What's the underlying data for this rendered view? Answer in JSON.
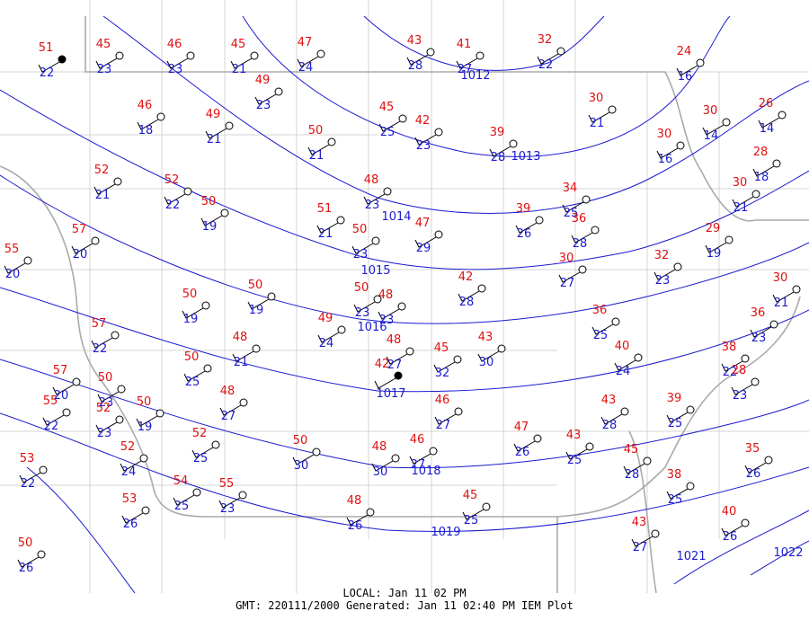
{
  "stations": [
    {
      "temp": 51,
      "dewpoint": 22
    },
    {
      "temp": 45,
      "dewpoint": 23
    },
    {
      "temp": 46,
      "dewpoint": 23
    },
    {
      "temp": 45,
      "dewpoint": 21
    },
    {
      "temp": 47,
      "dewpoint": 24
    },
    {
      "temp": 43,
      "dewpoint": 28
    },
    {
      "temp": 41,
      "dewpoint": 27
    },
    {
      "temp": 32,
      "dewpoint": 22
    },
    {
      "temp": 24,
      "dewpoint": 16
    },
    {
      "temp": 49,
      "dewpoint": 23
    },
    {
      "temp": 46,
      "dewpoint": 18
    },
    {
      "temp": 49,
      "dewpoint": 21
    },
    {
      "temp": 50,
      "dewpoint": 21
    },
    {
      "temp": 45,
      "dewpoint": 25
    },
    {
      "temp": 42,
      "dewpoint": 23
    },
    {
      "temp": 39,
      "dewpoint": 28
    },
    {
      "temp": 30,
      "dewpoint": 21
    },
    {
      "temp": 30,
      "dewpoint": 16
    },
    {
      "temp": 30,
      "dewpoint": 14
    },
    {
      "temp": 26,
      "dewpoint": 14
    },
    {
      "temp": 28,
      "dewpoint": 18
    },
    {
      "temp": 30,
      "dewpoint": 21
    },
    {
      "temp": 52,
      "dewpoint": 21
    },
    {
      "temp": 52,
      "dewpoint": 22
    },
    {
      "temp": 50,
      "dewpoint": 19
    },
    {
      "temp": 48,
      "dewpoint": 23
    },
    {
      "temp": 51,
      "dewpoint": 21
    },
    {
      "temp": 50,
      "dewpoint": 23
    },
    {
      "temp": 47,
      "dewpoint": 29
    },
    {
      "temp": 39,
      "dewpoint": 26
    },
    {
      "temp": 34,
      "dewpoint": 25
    },
    {
      "temp": 36,
      "dewpoint": 28
    },
    {
      "temp": 30,
      "dewpoint": 27
    },
    {
      "temp": 57,
      "dewpoint": 20
    },
    {
      "temp": 55,
      "dewpoint": 20
    },
    {
      "temp": 29,
      "dewpoint": 19
    },
    {
      "temp": 32,
      "dewpoint": 23
    },
    {
      "temp": 30,
      "dewpoint": 21
    },
    {
      "temp": 42,
      "dewpoint": 28
    },
    {
      "temp": 50,
      "dewpoint": 19
    },
    {
      "temp": 50,
      "dewpoint": 19
    },
    {
      "temp": 48,
      "dewpoint": 23
    },
    {
      "temp": 50,
      "dewpoint": 23
    },
    {
      "temp": 49,
      "dewpoint": 24
    },
    {
      "temp": 48,
      "dewpoint": 27
    },
    {
      "temp": 43,
      "dewpoint": 30
    },
    {
      "temp": 45,
      "dewpoint": 32
    },
    {
      "temp": 48,
      "dewpoint": 21
    },
    {
      "temp": 50,
      "dewpoint": 25
    },
    {
      "temp": 36,
      "dewpoint": 25
    },
    {
      "temp": 40,
      "dewpoint": 24
    },
    {
      "temp": 36,
      "dewpoint": 23
    },
    {
      "temp": 38,
      "dewpoint": 22
    },
    {
      "temp": 28,
      "dewpoint": 23
    },
    {
      "temp": 57,
      "dewpoint": 22
    },
    {
      "temp": 57,
      "dewpoint": 20
    },
    {
      "temp": 50,
      "dewpoint": 23
    },
    {
      "temp": 55,
      "dewpoint": 22
    },
    {
      "temp": 52,
      "dewpoint": 23
    },
    {
      "temp": 50,
      "dewpoint": 19
    },
    {
      "temp": 48,
      "dewpoint": 27
    },
    {
      "temp": 46,
      "dewpoint": 27
    },
    {
      "temp": 43,
      "dewpoint": 28
    },
    {
      "temp": 39,
      "dewpoint": 25
    },
    {
      "temp": 47,
      "dewpoint": 26
    },
    {
      "temp": 43,
      "dewpoint": 25
    },
    {
      "temp": 45,
      "dewpoint": 28
    },
    {
      "temp": 35,
      "dewpoint": 26
    },
    {
      "temp": 50,
      "dewpoint": 30
    },
    {
      "temp": 48,
      "dewpoint": 30
    },
    {
      "temp": 46,
      "dewpoint": 27
    },
    {
      "temp": 52,
      "dewpoint": 25
    },
    {
      "temp": 52,
      "dewpoint": 24
    },
    {
      "temp": 53,
      "dewpoint": 22
    },
    {
      "temp": 54,
      "dewpoint": 25
    },
    {
      "temp": 55,
      "dewpoint": 23
    },
    {
      "temp": 53,
      "dewpoint": 26
    },
    {
      "temp": 48,
      "dewpoint": 26
    },
    {
      "temp": 45,
      "dewpoint": 25
    },
    {
      "temp": 38,
      "dewpoint": 25
    },
    {
      "temp": 43,
      "dewpoint": 27
    },
    {
      "temp": 40,
      "dewpoint": 26
    },
    {
      "temp": 50,
      "dewpoint": 26
    },
    {
      "temp": 42
    }
  ],
  "isobars": [
    {
      "label": "1012"
    },
    {
      "label": "1013"
    },
    {
      "label": "1014"
    },
    {
      "label": "1015"
    },
    {
      "label": "1016"
    },
    {
      "label": "1017"
    },
    {
      "label": "1018"
    },
    {
      "label": "1019"
    },
    {
      "label": "1021"
    },
    {
      "label": "1022"
    }
  ],
  "footer": {
    "local": "LOCAL: Jan 11 02 PM",
    "gmt": "GMT: 220111/2000 Generated: Jan 11 02:40 PM IEM Plot"
  }
}
